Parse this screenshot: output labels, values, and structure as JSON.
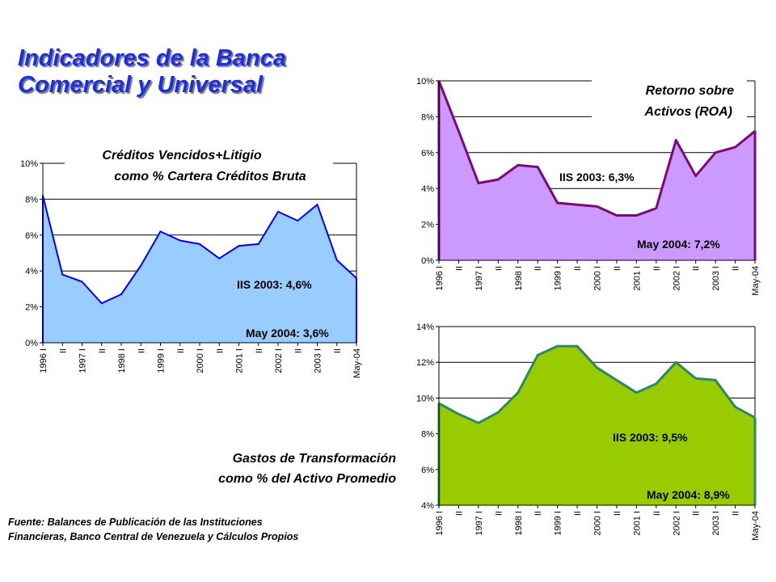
{
  "title": {
    "line1": "Indicadores de la Banca",
    "line2": "Comercial y Universal"
  },
  "source": {
    "line1": "Fuente: Balances de Publicación de las Instituciones",
    "line2": "Financieras, Banco Central de Venezuela y Cálculos Propios"
  },
  "chart_data": [
    {
      "type": "area",
      "title_lines": [
        "Créditos Vencidos+Litigio",
        "como % Cartera Créditos Bruta"
      ],
      "x": [
        "1996 I",
        "II",
        "1997 I",
        "II",
        "1998 I",
        "II",
        "1999 I",
        "II",
        "2000 I",
        "II",
        "2001 I",
        "II",
        "2002 I",
        "II",
        "2003 I",
        "II",
        "May-04"
      ],
      "values": [
        8.2,
        3.8,
        3.4,
        2.2,
        2.7,
        4.3,
        6.2,
        5.7,
        5.5,
        4.7,
        5.4,
        5.5,
        7.3,
        6.8,
        7.7,
        4.6,
        3.6
      ],
      "yticks": [
        "0%",
        "2%",
        "4%",
        "6%",
        "8%",
        "10%"
      ],
      "ylim": [
        0,
        10
      ],
      "grid": true,
      "fill_color": "#99ccff",
      "annotations": [
        "IIS 2003: 4,6%",
        "May 2004: 3,6%"
      ]
    },
    {
      "type": "area",
      "title_lines": [
        "Retorno sobre",
        "Activos (ROA)"
      ],
      "x": [
        "1996 I",
        "II",
        "1997 I",
        "II",
        "1998 I",
        "II",
        "1999 I",
        "II",
        "2000 I",
        "II",
        "2001 I",
        "II",
        "2002 I",
        "II",
        "2003 I",
        "II",
        "May-04"
      ],
      "values": [
        10.0,
        7.2,
        4.3,
        4.5,
        5.3,
        5.2,
        3.2,
        3.1,
        3.0,
        2.5,
        2.5,
        2.9,
        6.7,
        4.7,
        6.0,
        6.3,
        7.2
      ],
      "yticks": [
        "0%",
        "2%",
        "4%",
        "6%",
        "8%",
        "10%"
      ],
      "ylim": [
        0,
        10
      ],
      "grid": true,
      "fill_color": "#cc99ff",
      "annotations": [
        "IIS 2003: 6,3%",
        "May 2004: 7,2%"
      ]
    },
    {
      "type": "area",
      "title_lines": [
        "Gastos de Transformación",
        "como % del Activo Promedio"
      ],
      "x": [
        "1996 I",
        "II",
        "1997 I",
        "II",
        "1998 I",
        "II",
        "1999 I",
        "II",
        "2000 I",
        "II",
        "2001 I",
        "II",
        "2002 I",
        "II",
        "2003 I",
        "II",
        "May-04"
      ],
      "values": [
        9.7,
        9.1,
        8.6,
        9.2,
        10.3,
        12.4,
        12.9,
        12.9,
        11.7,
        11.0,
        10.3,
        10.8,
        12.0,
        11.1,
        11.0,
        9.5,
        8.9
      ],
      "yticks": [
        "4%",
        "6%",
        "8%",
        "10%",
        "12%",
        "14%"
      ],
      "ylim": [
        4,
        14
      ],
      "grid": true,
      "fill_color": "#99cc00",
      "annotations": [
        "IIS 2003: 9,5%",
        "May 2004: 8,9%"
      ]
    }
  ]
}
